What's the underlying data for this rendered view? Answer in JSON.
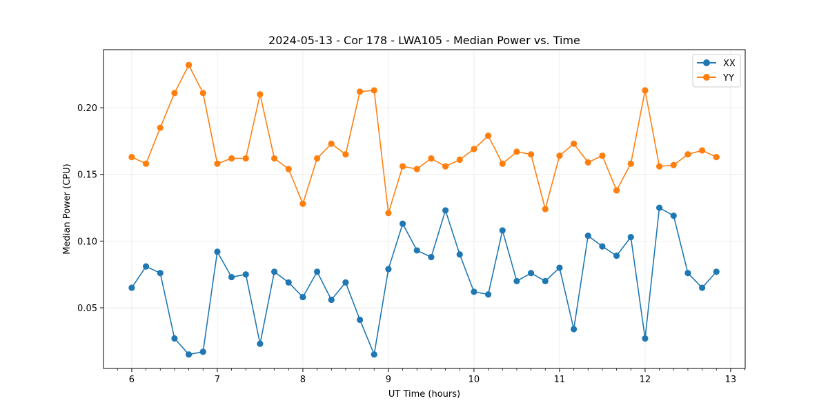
{
  "chart_data": {
    "type": "line",
    "title": "2024-05-13 - Cor 178 - LWA105 - Median Power vs. Time",
    "xlabel": "UT Time (hours)",
    "ylabel": "Median Power (CPU)",
    "xlim": [
      5.67,
      13.17
    ],
    "ylim": [
      0.0045,
      0.2435
    ],
    "xticks": [
      6,
      7,
      8,
      9,
      10,
      11,
      12,
      13
    ],
    "yticks": [
      0.05,
      0.1,
      0.15,
      0.2
    ],
    "ytick_labels": [
      "0.05",
      "0.10",
      "0.15",
      "0.20"
    ],
    "grid": true,
    "legend_position": "top-right",
    "x": [
      6.0,
      6.1667,
      6.3333,
      6.5,
      6.6667,
      6.8333,
      7.0,
      7.1667,
      7.3333,
      7.5,
      7.6667,
      7.8333,
      8.0,
      8.1667,
      8.3333,
      8.5,
      8.6667,
      8.8333,
      9.0,
      9.1667,
      9.3333,
      9.5,
      9.6667,
      9.8333,
      10.0,
      10.1667,
      10.3333,
      10.5,
      10.6667,
      10.8333,
      11.0,
      11.1667,
      11.3333,
      11.5,
      11.6667,
      11.8333,
      12.0,
      12.1667,
      12.3333,
      12.5,
      12.6667,
      12.8333
    ],
    "series": [
      {
        "name": "XX",
        "color": "#1f77b4",
        "values": [
          0.065,
          0.081,
          0.076,
          0.027,
          0.015,
          0.017,
          0.092,
          0.073,
          0.075,
          0.023,
          0.077,
          0.069,
          0.058,
          0.077,
          0.056,
          0.069,
          0.041,
          0.015,
          0.079,
          0.113,
          0.093,
          0.088,
          0.123,
          0.09,
          0.062,
          0.06,
          0.108,
          0.07,
          0.076,
          0.07,
          0.08,
          0.034,
          0.104,
          0.096,
          0.089,
          0.103,
          0.027,
          0.125,
          0.119,
          0.076,
          0.065,
          0.077
        ]
      },
      {
        "name": "YY",
        "color": "#ff7f0e",
        "values": [
          0.163,
          0.158,
          0.185,
          0.211,
          0.232,
          0.211,
          0.158,
          0.162,
          0.162,
          0.21,
          0.162,
          0.154,
          0.128,
          0.162,
          0.173,
          0.165,
          0.212,
          0.213,
          0.121,
          0.156,
          0.154,
          0.162,
          0.156,
          0.161,
          0.169,
          0.179,
          0.158,
          0.167,
          0.165,
          0.124,
          0.164,
          0.173,
          0.159,
          0.164,
          0.138,
          0.158,
          0.213,
          0.156,
          0.157,
          0.165,
          0.168,
          0.163
        ]
      }
    ]
  }
}
